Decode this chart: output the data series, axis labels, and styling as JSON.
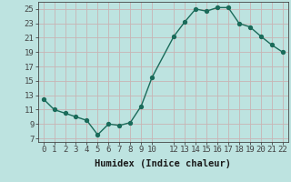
{
  "x": [
    0,
    1,
    2,
    3,
    4,
    5,
    6,
    7,
    8,
    9,
    10,
    12,
    13,
    14,
    15,
    16,
    17,
    18,
    19,
    20,
    21,
    22
  ],
  "y": [
    12.5,
    11.0,
    10.5,
    10.0,
    9.5,
    7.5,
    9.0,
    8.8,
    9.2,
    11.5,
    15.5,
    21.2,
    23.2,
    25.0,
    24.7,
    25.2,
    25.2,
    23.0,
    22.5,
    21.2,
    20.0,
    19.0
  ],
  "line_color": "#1a6b5a",
  "marker_color": "#1a6b5a",
  "bg_color": "#bde3e0",
  "grid_color": "#c8b4b4",
  "axis_color": "#444444",
  "xlabel": "Humidex (Indice chaleur)",
  "xlim": [
    -0.5,
    22.5
  ],
  "ylim": [
    6.5,
    26
  ],
  "yticks": [
    7,
    9,
    11,
    13,
    15,
    17,
    19,
    21,
    23,
    25
  ],
  "xticks": [
    0,
    1,
    2,
    3,
    4,
    5,
    6,
    7,
    8,
    9,
    10,
    12,
    13,
    14,
    15,
    16,
    17,
    18,
    19,
    20,
    21,
    22
  ],
  "line_width": 1.0,
  "marker_size": 2.8,
  "xlabel_fontsize": 7.5,
  "tick_fontsize": 6.5
}
